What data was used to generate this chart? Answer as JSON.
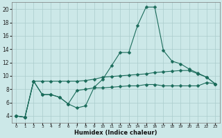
{
  "x": [
    0,
    1,
    2,
    3,
    4,
    5,
    6,
    7,
    8,
    9,
    10,
    11,
    12,
    13,
    14,
    15,
    16,
    17,
    18,
    19,
    20,
    21,
    22,
    23
  ],
  "line1": [
    4.0,
    3.8,
    9.2,
    7.2,
    7.2,
    6.8,
    5.8,
    5.2,
    5.5,
    8.3,
    9.5,
    11.5,
    13.5,
    13.5,
    17.5,
    20.3,
    20.3,
    13.8,
    12.2,
    11.8,
    11.0,
    10.4,
    9.8,
    8.8
  ],
  "line2": [
    4.0,
    3.8,
    9.2,
    9.2,
    9.2,
    9.2,
    9.2,
    9.2,
    9.3,
    9.5,
    9.8,
    9.9,
    10.0,
    10.1,
    10.2,
    10.3,
    10.5,
    10.6,
    10.7,
    10.8,
    10.8,
    10.3,
    9.8,
    8.8
  ],
  "line3": [
    4.0,
    3.8,
    9.2,
    7.2,
    7.2,
    6.8,
    5.8,
    7.8,
    8.0,
    8.2,
    8.2,
    8.3,
    8.4,
    8.5,
    8.5,
    8.7,
    8.7,
    8.5,
    8.5,
    8.5,
    8.5,
    8.5,
    9.0,
    8.8
  ],
  "color": "#1a6b5a",
  "bg_color": "#cce8e8",
  "grid_color": "#aacccc",
  "xlim": [
    -0.5,
    23.5
  ],
  "ylim": [
    3.0,
    21.0
  ],
  "yticks": [
    4,
    6,
    8,
    10,
    12,
    14,
    16,
    18,
    20
  ],
  "xticks": [
    0,
    1,
    2,
    3,
    4,
    5,
    6,
    7,
    8,
    9,
    10,
    11,
    12,
    13,
    14,
    15,
    16,
    17,
    18,
    19,
    20,
    21,
    22,
    23
  ],
  "xlabel": "Humidex (Indice chaleur)",
  "marker": "D",
  "markersize": 2.5,
  "linewidth": 0.8
}
